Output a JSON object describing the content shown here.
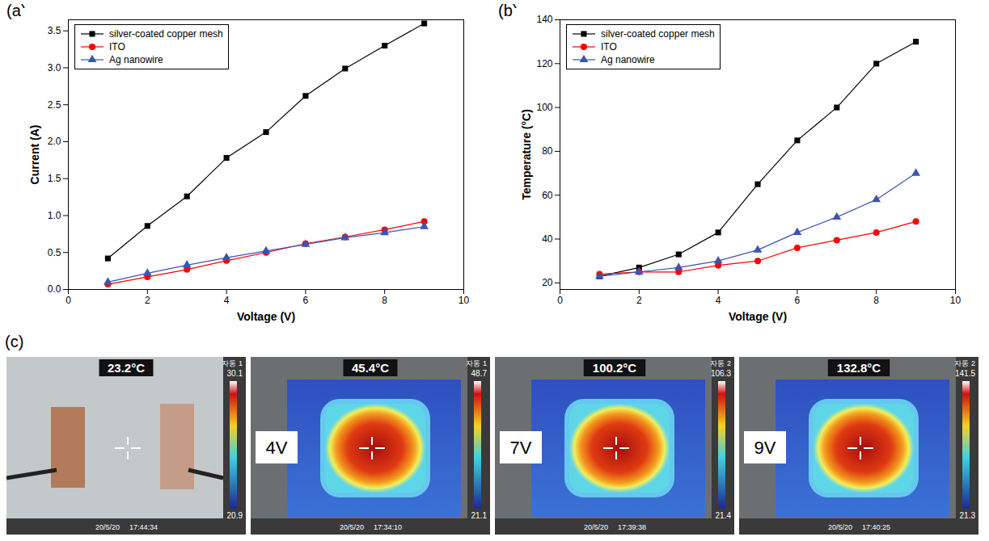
{
  "chart_data": [
    {
      "type": "line",
      "label": "(a)",
      "xlabel": "Voltage (V)",
      "ylabel": "Current (A)",
      "x": [
        1,
        2,
        3,
        4,
        5,
        6,
        7,
        8,
        9
      ],
      "series": [
        {
          "name": "silver-coated copper mesh",
          "color": "#000000",
          "marker": "square",
          "values": [
            0.42,
            0.86,
            1.26,
            1.78,
            2.13,
            2.62,
            2.99,
            3.3,
            3.6
          ]
        },
        {
          "name": "ITO",
          "color": "#ff0000",
          "marker": "circle",
          "values": [
            0.07,
            0.17,
            0.27,
            0.39,
            0.5,
            0.62,
            0.71,
            0.81,
            0.92
          ]
        },
        {
          "name": "Ag nanowire",
          "color": "#3a55b0",
          "marker": "triangle",
          "values": [
            0.1,
            0.22,
            0.33,
            0.43,
            0.52,
            0.61,
            0.7,
            0.77,
            0.85
          ]
        }
      ],
      "xlim": [
        0,
        10
      ],
      "xticks": [
        0,
        2,
        4,
        6,
        8,
        10
      ],
      "ylim": [
        0,
        3.65
      ],
      "yticks": [
        {
          "value": 0,
          "label": "0.0"
        },
        0.5,
        {
          "value": 1,
          "label": "1.0"
        },
        1.5,
        {
          "value": 2,
          "label": "2.0"
        },
        2.5,
        {
          "value": 3,
          "label": "3.0"
        },
        3.5
      ],
      "legend": "upper left",
      "grid": false
    },
    {
      "type": "line",
      "label": "(b)",
      "xlabel": "Voltage (V)",
      "ylabel": "Temperature (°C)",
      "x": [
        1,
        2,
        3,
        4,
        5,
        6,
        7,
        8,
        9
      ],
      "series": [
        {
          "name": "silver-coated copper mesh",
          "color": "#000000",
          "marker": "square",
          "values": [
            23,
            27,
            33,
            43,
            65,
            85,
            100,
            120,
            130
          ]
        },
        {
          "name": "ITO",
          "color": "#ff0000",
          "marker": "circle",
          "values": [
            24,
            25,
            25,
            28,
            30,
            36,
            39.5,
            43,
            48
          ]
        },
        {
          "name": "Ag nanowire",
          "color": "#3a55b0",
          "marker": "triangle",
          "values": [
            23,
            25,
            27,
            30,
            35,
            43,
            50,
            58,
            70
          ]
        }
      ],
      "xlim": [
        0,
        10
      ],
      "xticks": [
        0,
        2,
        4,
        6,
        8,
        10
      ],
      "ylim": [
        17,
        140
      ],
      "yticks": [
        20,
        40,
        60,
        80,
        100,
        120,
        140
      ],
      "legend": "upper left",
      "grid": false
    }
  ],
  "panel_c": {
    "label": "(c)",
    "images": [
      {
        "temperature": "23.2°C",
        "mode": "자동 1",
        "scale_max": "30.1",
        "scale_min": "20.9",
        "date": "20/5/20",
        "time": "17:44:34"
      },
      {
        "temperature": "45.4°C",
        "voltage": "4V",
        "mode": "자동 1",
        "scale_max": "48.7",
        "scale_min": "21.1",
        "date": "20/5/20",
        "time": "17:34:10"
      },
      {
        "temperature": "100.2°C",
        "voltage": "7V",
        "mode": "자동 2",
        "scale_max": "106.3",
        "scale_min": "21.4",
        "date": "20/5/20",
        "time": "17:39:38"
      },
      {
        "temperature": "132.8°C",
        "voltage": "9V",
        "mode": "자동 2",
        "scale_max": "141.5",
        "scale_min": "21.3",
        "date": "20/5/20",
        "time": "17:40:25"
      }
    ]
  }
}
